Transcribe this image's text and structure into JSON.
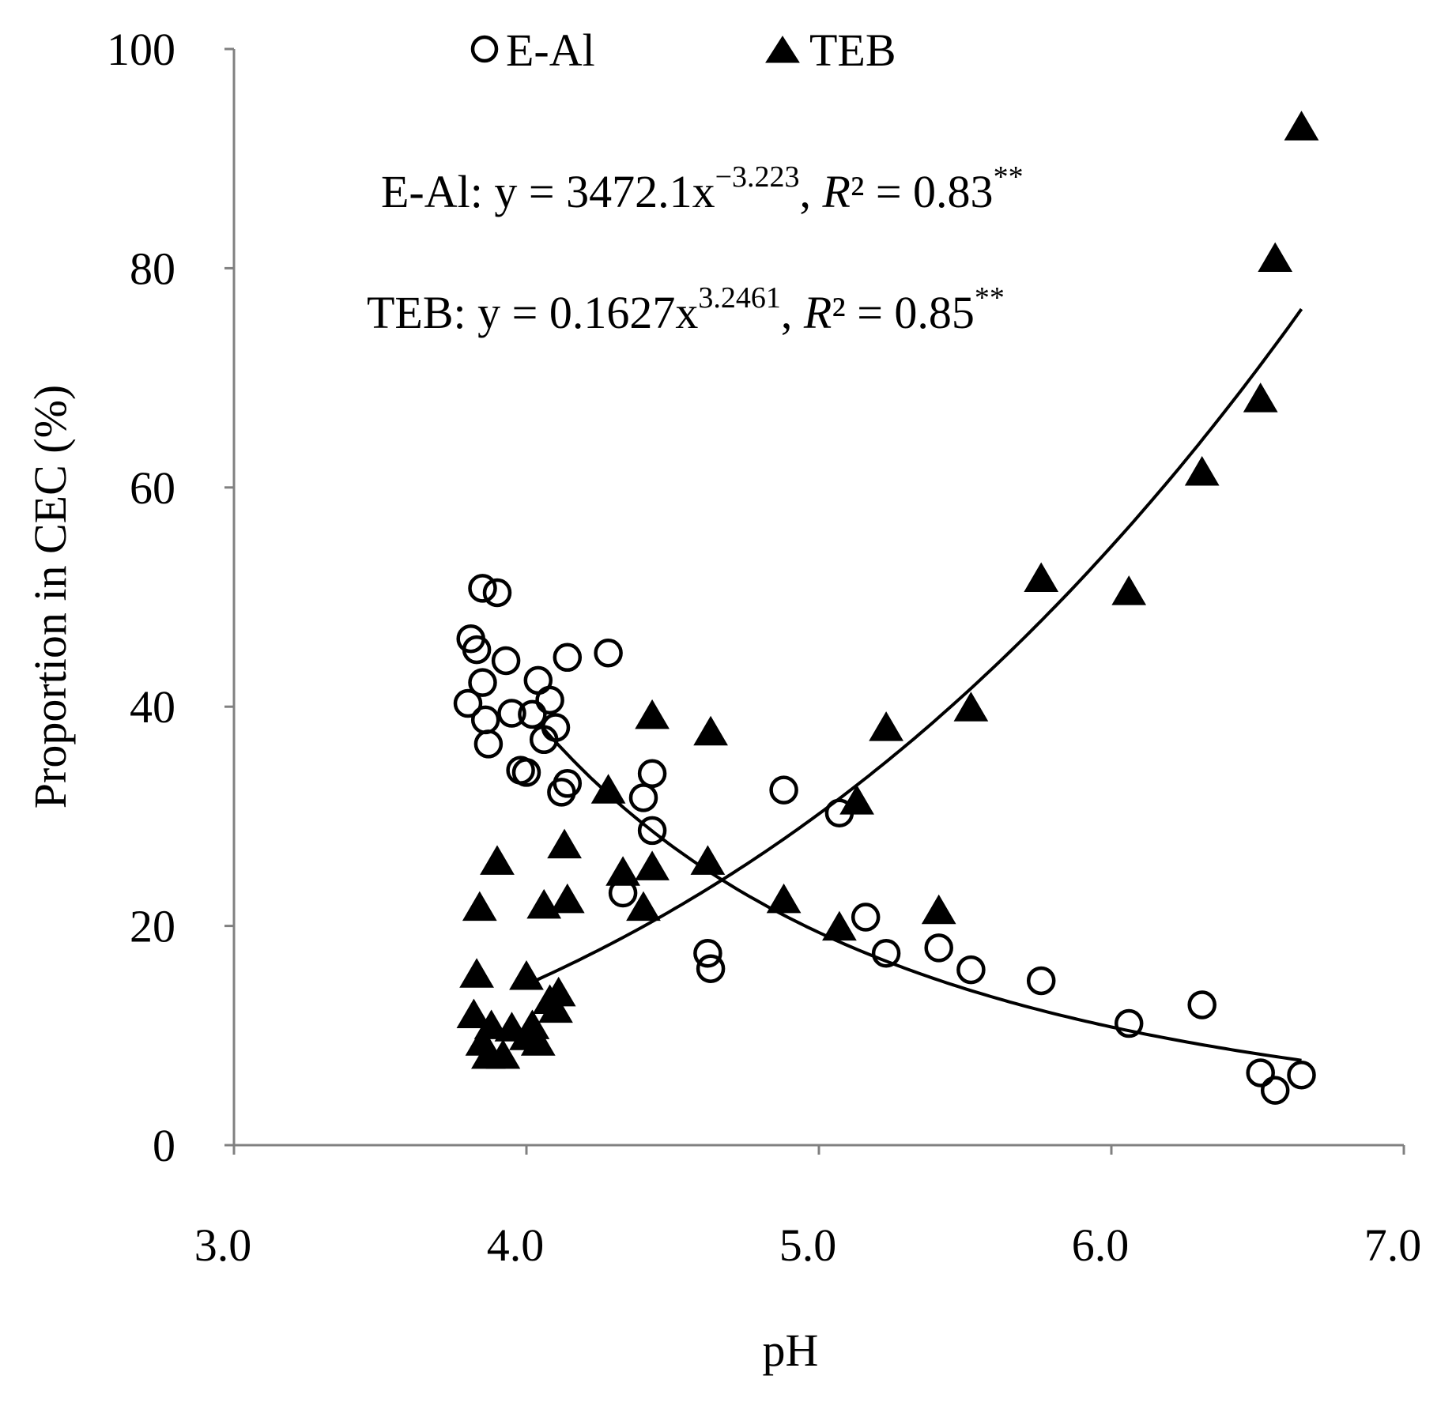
{
  "chart_data": {
    "type": "scatter",
    "xlabel": "pH",
    "ylabel": "Proportion in CEC (%)",
    "xlim": [
      3.0,
      7.0
    ],
    "ylim": [
      0,
      100
    ],
    "x_ticks": [
      3.0,
      4.0,
      5.0,
      6.0,
      7.0
    ],
    "x_tick_labels": [
      "3.0",
      "4.0",
      "5.0",
      "6.0",
      "7.0"
    ],
    "y_ticks": [
      0,
      20,
      40,
      60,
      80,
      100
    ],
    "y_tick_labels": [
      "0",
      "20",
      "40",
      "60",
      "80",
      "100"
    ],
    "grid": false,
    "legend_position": "top",
    "series": [
      {
        "name": "E-Al",
        "marker": "open-circle",
        "color": "#000000",
        "points": [
          [
            3.81,
            46.2
          ],
          [
            3.83,
            45.2
          ],
          [
            3.85,
            50.8
          ],
          [
            3.9,
            50.4
          ],
          [
            3.85,
            42.2
          ],
          [
            3.93,
            44.2
          ],
          [
            3.8,
            40.3
          ],
          [
            3.86,
            38.8
          ],
          [
            3.87,
            36.6
          ],
          [
            3.95,
            39.4
          ],
          [
            3.98,
            34.2
          ],
          [
            4.0,
            34.0
          ],
          [
            4.02,
            39.3
          ],
          [
            4.04,
            42.4
          ],
          [
            4.06,
            37.0
          ],
          [
            4.08,
            40.6
          ],
          [
            4.1,
            38.1
          ],
          [
            4.12,
            32.2
          ],
          [
            4.14,
            44.5
          ],
          [
            4.14,
            33.0
          ],
          [
            4.28,
            44.9
          ],
          [
            4.33,
            23.0
          ],
          [
            4.4,
            31.7
          ],
          [
            4.43,
            33.9
          ],
          [
            4.43,
            28.7
          ],
          [
            4.62,
            17.5
          ],
          [
            4.63,
            16.1
          ],
          [
            4.88,
            32.4
          ],
          [
            5.07,
            30.3
          ],
          [
            5.16,
            20.8
          ],
          [
            5.23,
            17.5
          ],
          [
            5.41,
            18.0
          ],
          [
            5.52,
            16.0
          ],
          [
            5.76,
            15.0
          ],
          [
            6.06,
            11.1
          ],
          [
            6.31,
            12.8
          ],
          [
            6.51,
            6.6
          ],
          [
            6.56,
            5.0
          ],
          [
            6.65,
            6.4
          ]
        ]
      },
      {
        "name": "TEB",
        "marker": "filled-triangle",
        "color": "#000000",
        "points": [
          [
            3.82,
            12.0
          ],
          [
            3.83,
            15.7
          ],
          [
            3.84,
            21.8
          ],
          [
            3.85,
            9.5
          ],
          [
            3.87,
            8.3
          ],
          [
            3.88,
            11.0
          ],
          [
            3.9,
            26.0
          ],
          [
            3.92,
            8.3
          ],
          [
            3.95,
            10.8
          ],
          [
            4.0,
            10.0
          ],
          [
            4.0,
            15.5
          ],
          [
            4.02,
            11.0
          ],
          [
            4.04,
            9.5
          ],
          [
            4.06,
            22.0
          ],
          [
            4.08,
            13.3
          ],
          [
            4.1,
            12.5
          ],
          [
            4.11,
            14.0
          ],
          [
            4.13,
            27.5
          ],
          [
            4.14,
            22.5
          ],
          [
            4.28,
            32.5
          ],
          [
            4.33,
            25.0
          ],
          [
            4.4,
            21.8
          ],
          [
            4.43,
            25.5
          ],
          [
            4.43,
            39.3
          ],
          [
            4.62,
            26.0
          ],
          [
            4.63,
            37.8
          ],
          [
            4.88,
            22.5
          ],
          [
            5.07,
            20.0
          ],
          [
            5.13,
            31.5
          ],
          [
            5.23,
            38.2
          ],
          [
            5.41,
            21.5
          ],
          [
            5.52,
            40.0
          ],
          [
            5.76,
            51.8
          ],
          [
            6.06,
            50.6
          ],
          [
            6.31,
            61.5
          ],
          [
            6.51,
            68.2
          ],
          [
            6.56,
            81.0
          ],
          [
            6.65,
            93.0
          ]
        ]
      }
    ],
    "fits": [
      {
        "series": "E-Al",
        "equation_type": "power",
        "a": 3472.1,
        "b": -3.223,
        "x_range": [
          4.05,
          6.65
        ]
      },
      {
        "series": "TEB",
        "equation_type": "power",
        "a": 0.1627,
        "b": 3.2461,
        "x_range": [
          4.0,
          6.65
        ]
      }
    ],
    "annotations": {
      "eal_prefix": "E-Al: y = 3472.1x",
      "eal_exp": "−3.223",
      "eal_mid": ", ",
      "eal_r": "R",
      "eal_r2val": "² = 0.83",
      "eal_sig": "**",
      "teb_prefix": "TEB: y = 0.1627x",
      "teb_exp": "3.2461",
      "teb_mid": ", ",
      "teb_r": "R",
      "teb_r2val": "² = 0.85",
      "teb_sig": "**"
    }
  }
}
